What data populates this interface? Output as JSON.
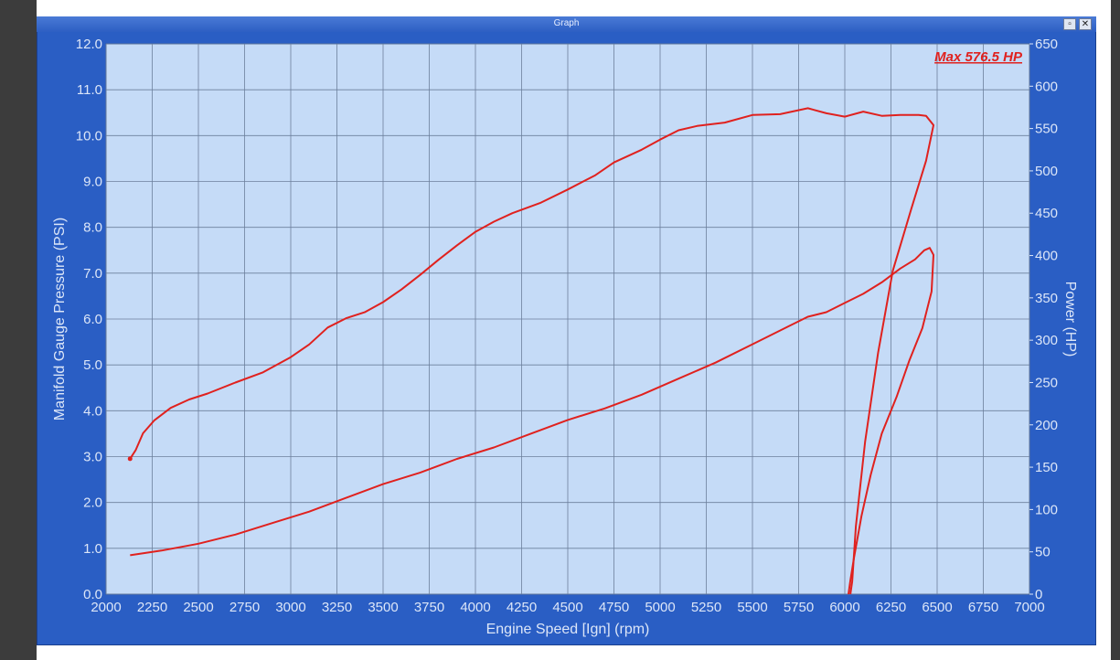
{
  "window": {
    "title": "Graph",
    "restore_label": "▫",
    "close_label": "✕"
  },
  "colors": {
    "frame": "#2a5ec4",
    "plot_bg": "#c5dbf7",
    "grid": "#6c7f9c",
    "curve": "#e0211e",
    "label": "#dce6f8"
  },
  "chart_data": {
    "type": "line",
    "title": "",
    "xlabel": "Engine Speed [Ign] (rpm)",
    "ylabel": "Manifold Gauge Pressure (PSI)",
    "y2label": "Power (HP)",
    "xlim": [
      2000,
      7000
    ],
    "ylim": [
      0,
      12
    ],
    "y2lim": [
      0,
      650
    ],
    "grid": true,
    "x_ticks": [
      "2000",
      "2250",
      "2500",
      "2750",
      "3000",
      "3250",
      "3500",
      "3750",
      "4000",
      "4250",
      "4500",
      "4750",
      "5000",
      "5250",
      "5500",
      "5750",
      "6000",
      "6250",
      "6500",
      "6750",
      "7000"
    ],
    "y_ticks": [
      "0.0",
      "1.0",
      "2.0",
      "3.0",
      "4.0",
      "5.0",
      "6.0",
      "7.0",
      "8.0",
      "9.0",
      "10.0",
      "11.0",
      "12.0"
    ],
    "y2_ticks": [
      "0",
      "50",
      "100",
      "150",
      "200",
      "250",
      "300",
      "350",
      "400",
      "450",
      "500",
      "550",
      "600",
      "650"
    ],
    "annotation": "Max 576.5 HP",
    "series": [
      {
        "axis": "right",
        "points": [
          [
            2130,
            160
          ],
          [
            2160,
            170
          ],
          [
            2200,
            190
          ],
          [
            2260,
            205
          ],
          [
            2350,
            220
          ],
          [
            2450,
            230
          ],
          [
            2550,
            237
          ],
          [
            2700,
            250
          ],
          [
            2850,
            262
          ],
          [
            3000,
            280
          ],
          [
            3100,
            295
          ],
          [
            3200,
            315
          ],
          [
            3300,
            326
          ],
          [
            3400,
            333
          ],
          [
            3500,
            345
          ],
          [
            3600,
            360
          ],
          [
            3700,
            377
          ],
          [
            3800,
            395
          ],
          [
            3900,
            412
          ],
          [
            4000,
            428
          ],
          [
            4100,
            440
          ],
          [
            4200,
            450
          ],
          [
            4350,
            462
          ],
          [
            4500,
            478
          ],
          [
            4650,
            495
          ],
          [
            4750,
            510
          ],
          [
            4900,
            525
          ],
          [
            5000,
            537
          ],
          [
            5100,
            548
          ],
          [
            5200,
            553
          ],
          [
            5350,
            557
          ],
          [
            5500,
            566
          ],
          [
            5650,
            567
          ],
          [
            5800,
            574
          ],
          [
            5900,
            568
          ],
          [
            6000,
            564
          ],
          [
            6100,
            570
          ],
          [
            6200,
            565
          ],
          [
            6300,
            566
          ],
          [
            6400,
            566
          ],
          [
            6440,
            565
          ],
          [
            6480,
            554
          ],
          [
            6440,
            512
          ],
          [
            6360,
            455
          ],
          [
            6260,
            382
          ],
          [
            6180,
            285
          ],
          [
            6110,
            180
          ],
          [
            6060,
            80
          ],
          [
            6040,
            15
          ],
          [
            6030,
            0
          ]
        ]
      },
      {
        "axis": "left",
        "points": [
          [
            2130,
            0.85
          ],
          [
            2300,
            0.95
          ],
          [
            2500,
            1.1
          ],
          [
            2700,
            1.3
          ],
          [
            2900,
            1.55
          ],
          [
            3100,
            1.8
          ],
          [
            3300,
            2.1
          ],
          [
            3500,
            2.4
          ],
          [
            3700,
            2.65
          ],
          [
            3900,
            2.95
          ],
          [
            4100,
            3.2
          ],
          [
            4300,
            3.5
          ],
          [
            4500,
            3.8
          ],
          [
            4700,
            4.05
          ],
          [
            4900,
            4.35
          ],
          [
            5100,
            4.7
          ],
          [
            5300,
            5.05
          ],
          [
            5500,
            5.45
          ],
          [
            5700,
            5.85
          ],
          [
            5800,
            6.05
          ],
          [
            5900,
            6.15
          ],
          [
            6000,
            6.35
          ],
          [
            6100,
            6.55
          ],
          [
            6200,
            6.8
          ],
          [
            6300,
            7.1
          ],
          [
            6380,
            7.3
          ],
          [
            6430,
            7.5
          ],
          [
            6460,
            7.55
          ],
          [
            6480,
            7.4
          ],
          [
            6470,
            6.6
          ],
          [
            6420,
            5.8
          ],
          [
            6350,
            5.1
          ],
          [
            6280,
            4.3
          ],
          [
            6200,
            3.5
          ],
          [
            6140,
            2.6
          ],
          [
            6090,
            1.7
          ],
          [
            6050,
            0.8
          ],
          [
            6030,
            0.3
          ],
          [
            6020,
            0.0
          ]
        ]
      }
    ]
  }
}
